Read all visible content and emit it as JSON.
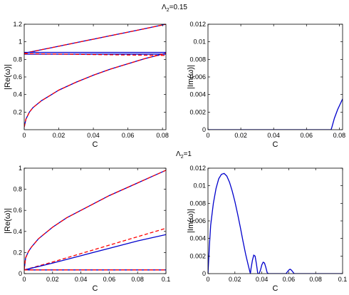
{
  "titles": [
    {
      "symbol": "Λ",
      "subscript": "2",
      "suffix": "=0.15"
    },
    {
      "symbol": "Λ",
      "subscript": "2",
      "suffix": "=1"
    }
  ],
  "chart_data": [
    {
      "type": "line",
      "xlabel": "C",
      "ylabel": "|Re(ω)|",
      "xlim": [
        0,
        0.082
      ],
      "ylim": [
        0,
        1.2
      ],
      "xticks": [
        0,
        0.02,
        0.04,
        0.06,
        0.08
      ],
      "xtick_labels": [
        "0",
        "0.02",
        "0.04",
        "0.06",
        "0.08"
      ],
      "yticks": [
        0.2,
        0.4,
        0.6,
        0.8,
        1,
        1.2
      ],
      "ytick_labels": [
        "0.2",
        "0.4",
        "0.6",
        "0.8",
        "1",
        "1.2"
      ],
      "colors": {
        "solid": "#0000cc",
        "dashed": "#ff0000"
      },
      "series": [
        {
          "style": "solid",
          "x": [
            0,
            0.01,
            0.02,
            0.03,
            0.04,
            0.05,
            0.06,
            0.07,
            0.082
          ],
          "y": [
            0.87,
            0.91,
            0.95,
            0.99,
            1.03,
            1.07,
            1.11,
            1.15,
            1.2
          ]
        },
        {
          "style": "dashed",
          "x": [
            0,
            0.01,
            0.02,
            0.03,
            0.04,
            0.05,
            0.06,
            0.07,
            0.082
          ],
          "y": [
            0.87,
            0.91,
            0.95,
            0.99,
            1.03,
            1.07,
            1.11,
            1.15,
            1.2
          ]
        },
        {
          "style": "solid",
          "x": [
            0,
            0.082
          ],
          "y": [
            0.88,
            0.88
          ]
        },
        {
          "style": "solid",
          "x": [
            0,
            0.082
          ],
          "y": [
            0.86,
            0.86
          ]
        },
        {
          "style": "dashed",
          "x": [
            0,
            0.02,
            0.04,
            0.06,
            0.082
          ],
          "y": [
            0.865,
            0.86,
            0.855,
            0.85,
            0.845
          ]
        },
        {
          "style": "solid",
          "x": [
            0,
            0.001,
            0.003,
            0.005,
            0.01,
            0.015,
            0.02,
            0.03,
            0.04,
            0.05,
            0.06,
            0.07,
            0.082
          ],
          "y": [
            0.03,
            0.12,
            0.2,
            0.25,
            0.33,
            0.39,
            0.45,
            0.54,
            0.62,
            0.69,
            0.75,
            0.81,
            0.87
          ]
        },
        {
          "style": "dashed",
          "x": [
            0,
            0.001,
            0.003,
            0.005,
            0.01,
            0.015,
            0.02,
            0.03,
            0.04,
            0.05,
            0.06,
            0.07,
            0.082
          ],
          "y": [
            0.03,
            0.12,
            0.2,
            0.25,
            0.33,
            0.39,
            0.45,
            0.54,
            0.62,
            0.69,
            0.75,
            0.81,
            0.87
          ]
        }
      ]
    },
    {
      "type": "line",
      "xlabel": "C",
      "ylabel": "|Im(ω)|",
      "xlim": [
        0,
        0.082
      ],
      "ylim": [
        0,
        0.012
      ],
      "xticks": [
        0,
        0.02,
        0.04,
        0.06,
        0.08
      ],
      "xtick_labels": [
        "0",
        "0.02",
        "0.04",
        "0.06",
        "0.08"
      ],
      "yticks": [
        0,
        0.002,
        0.004,
        0.006,
        0.008,
        0.01,
        0.012
      ],
      "ytick_labels": [
        "0",
        "0.002",
        "0.004",
        "0.006",
        "0.008",
        "0.01",
        "0.012"
      ],
      "colors": {
        "solid": "#0000cc"
      },
      "series": [
        {
          "style": "solid",
          "x": [
            0,
            0.075,
            0.0755,
            0.077,
            0.079,
            0.081,
            0.082
          ],
          "y": [
            0,
            0,
            0.0003,
            0.0013,
            0.0023,
            0.0031,
            0.0035
          ]
        }
      ]
    },
    {
      "type": "line",
      "xlabel": "C",
      "ylabel": "|Re(ω)|",
      "xlim": [
        0,
        0.1
      ],
      "ylim": [
        0,
        1
      ],
      "xticks": [
        0,
        0.02,
        0.04,
        0.06,
        0.08,
        0.1
      ],
      "xtick_labels": [
        "0",
        "0.02",
        "0.04",
        "0.06",
        "0.08",
        "0.1"
      ],
      "yticks": [
        0,
        0.2,
        0.4,
        0.6,
        0.8,
        1
      ],
      "ytick_labels": [
        "0",
        "0.2",
        "0.4",
        "0.6",
        "0.8",
        "1"
      ],
      "colors": {
        "solid": "#0000cc",
        "dashed": "#ff0000"
      },
      "series": [
        {
          "style": "solid",
          "x": [
            0,
            0.001,
            0.003,
            0.005,
            0.01,
            0.02,
            0.03,
            0.04,
            0.05,
            0.06,
            0.07,
            0.08,
            0.09,
            0.1
          ],
          "y": [
            0.04,
            0.15,
            0.21,
            0.25,
            0.33,
            0.44,
            0.53,
            0.6,
            0.67,
            0.74,
            0.8,
            0.86,
            0.92,
            0.98
          ]
        },
        {
          "style": "dashed",
          "x": [
            0,
            0.001,
            0.003,
            0.005,
            0.01,
            0.02,
            0.03,
            0.04,
            0.05,
            0.06,
            0.07,
            0.08,
            0.09,
            0.1
          ],
          "y": [
            0.04,
            0.15,
            0.21,
            0.25,
            0.33,
            0.44,
            0.53,
            0.6,
            0.67,
            0.74,
            0.8,
            0.86,
            0.92,
            0.98
          ]
        },
        {
          "style": "dashed",
          "x": [
            0,
            0.02,
            0.04,
            0.06,
            0.08,
            0.1
          ],
          "y": [
            0.035,
            0.11,
            0.19,
            0.27,
            0.35,
            0.43
          ]
        },
        {
          "style": "solid",
          "x": [
            0,
            0.02,
            0.04,
            0.06,
            0.08,
            0.1
          ],
          "y": [
            0.035,
            0.1,
            0.17,
            0.24,
            0.31,
            0.37
          ]
        },
        {
          "style": "solid",
          "x": [
            0,
            0.1
          ],
          "y": [
            0.035,
            0.035
          ]
        },
        {
          "style": "dashed",
          "x": [
            0,
            0.1
          ],
          "y": [
            0.035,
            0.035
          ]
        }
      ]
    },
    {
      "type": "line",
      "xlabel": "C",
      "ylabel": "|Im(ω)|",
      "xlim": [
        0,
        0.1
      ],
      "ylim": [
        0,
        0.012
      ],
      "xticks": [
        0,
        0.02,
        0.04,
        0.06,
        0.08,
        0.1
      ],
      "xtick_labels": [
        "0",
        "0.02",
        "0.04",
        "0.06",
        "0.08",
        "0.1"
      ],
      "yticks": [
        0,
        0.002,
        0.004,
        0.006,
        0.008,
        0.01,
        0.012
      ],
      "ytick_labels": [
        "0",
        "0.002",
        "0.004",
        "0.006",
        "0.008",
        "0.01",
        "0.012"
      ],
      "colors": {
        "solid": "#0000cc"
      },
      "series": [
        {
          "style": "solid",
          "x": [
            0,
            0.001,
            0.002,
            0.004,
            0.006,
            0.008,
            0.01,
            0.012,
            0.014,
            0.016,
            0.018,
            0.02,
            0.022,
            0.024,
            0.026,
            0.028,
            0.03,
            0.0315,
            0.032,
            0.033,
            0.034,
            0.035,
            0.036,
            0.037,
            0.038,
            0.039,
            0.04,
            0.041,
            0.042,
            0.043,
            0.044,
            0.045,
            0.046,
            0.058,
            0.059,
            0.06,
            0.061,
            0.062,
            0.063,
            0.064,
            0.1
          ],
          "y": [
            0,
            0.003,
            0.0055,
            0.008,
            0.0097,
            0.0108,
            0.0113,
            0.0114,
            0.0111,
            0.0104,
            0.0094,
            0.0082,
            0.0068,
            0.0053,
            0.0037,
            0.0022,
            0.0009,
            0.0,
            0.0006,
            0.0015,
            0.0021,
            0.002,
            0.0011,
            0.0,
            0.0,
            0.0004,
            0.001,
            0.0013,
            0.0012,
            0.0007,
            0.0001,
            0.0,
            0.0,
            0.0,
            0.0002,
            0.0004,
            0.0005,
            0.0004,
            0.0002,
            0.0,
            0.0
          ]
        }
      ]
    }
  ]
}
